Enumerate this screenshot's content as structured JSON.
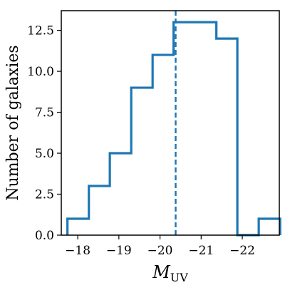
{
  "chart_data": {
    "type": "histogram",
    "xlabel_main": "M",
    "xlabel_sub": "UV",
    "ylabel": "Number of galaxies",
    "xlim": [
      -17.6,
      -22.9
    ],
    "ylim": [
      0,
      13.7
    ],
    "x_ticks": [
      -18,
      -19,
      -20,
      -21,
      -22
    ],
    "x_tick_labels": [
      "−18",
      "−19",
      "−20",
      "−21",
      "−22"
    ],
    "y_ticks": [
      0,
      2.5,
      5,
      7.5,
      10,
      12.5
    ],
    "y_tick_labels": [
      "0.0",
      "2.5",
      "5.0",
      "7.5",
      "10.0",
      "12.5"
    ],
    "bin_edges": [
      -17.75,
      -18.27,
      -18.78,
      -19.3,
      -19.82,
      -20.33,
      -20.85,
      -21.37,
      -21.88,
      -22.4,
      -22.92
    ],
    "counts": [
      1,
      3,
      5,
      9,
      11,
      13,
      13,
      12,
      0,
      1
    ],
    "median_line_x": -20.38,
    "color": "#1f77b4"
  }
}
